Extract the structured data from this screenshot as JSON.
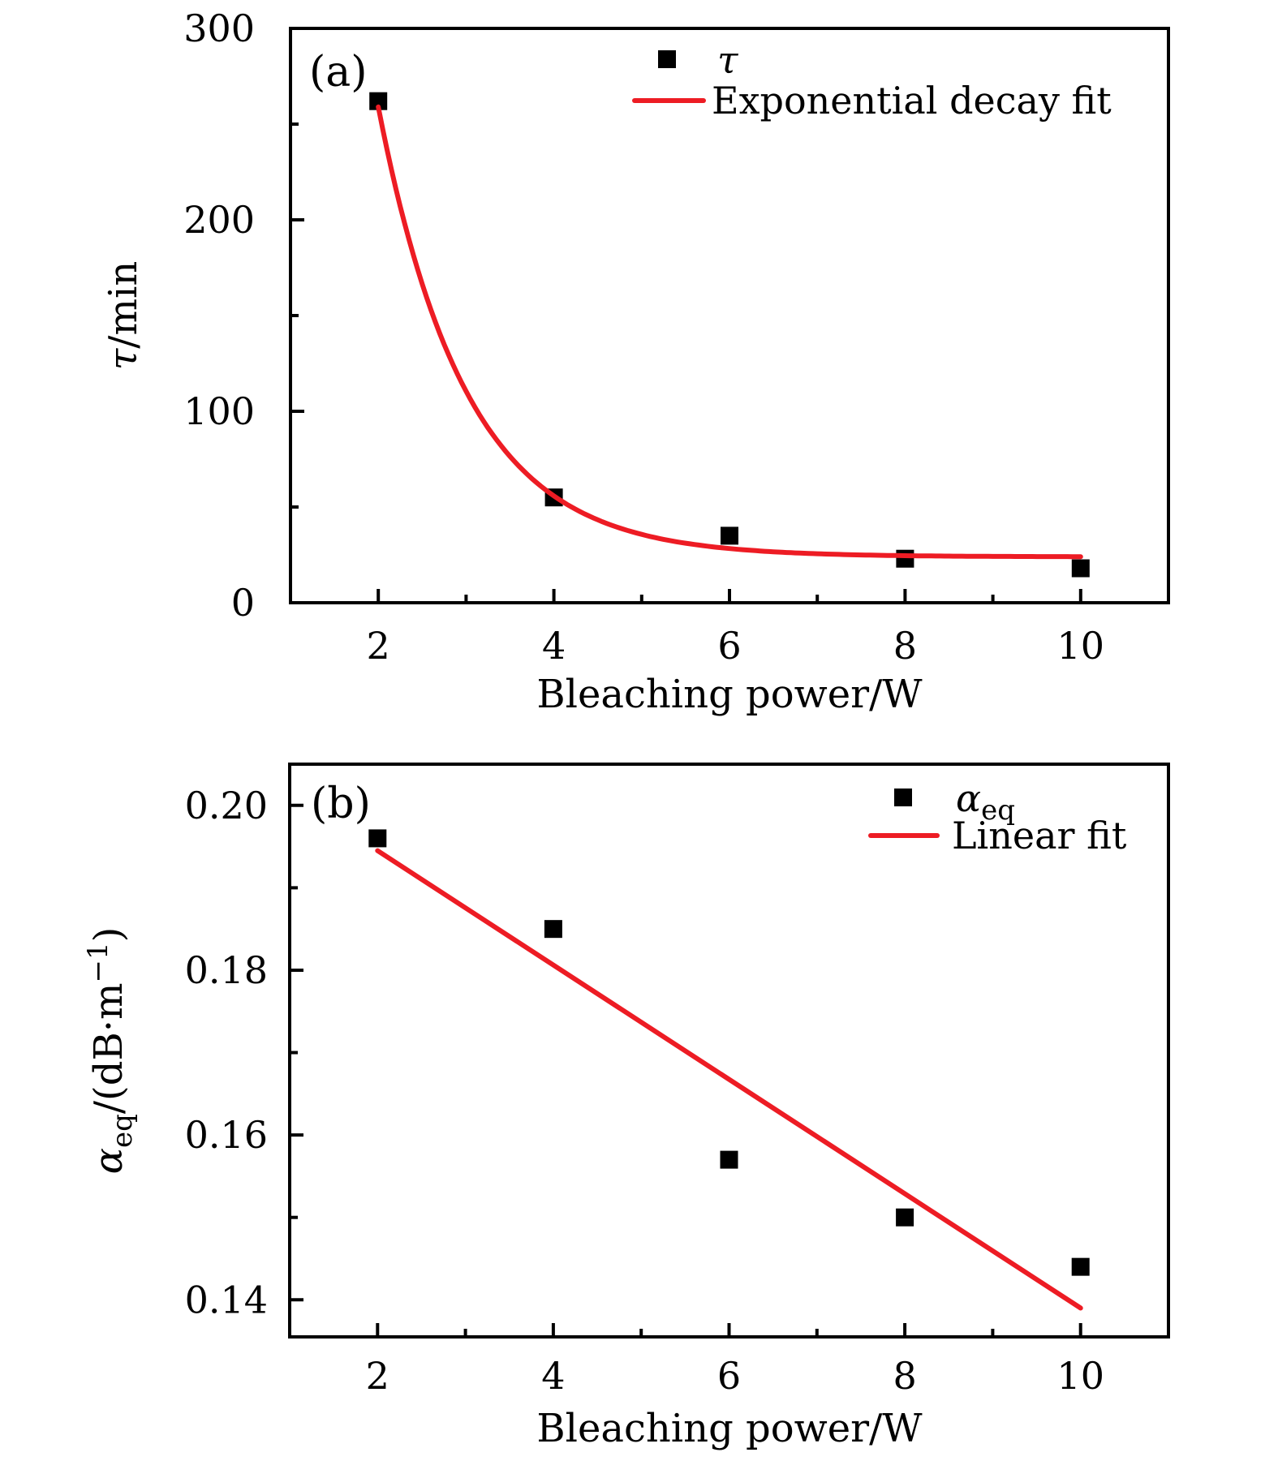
{
  "figure": {
    "accent_red": "#ed1c24",
    "marker_black": "#000000",
    "panels": [
      {
        "panel_label": "(a)",
        "xlabel": "Bleaching power/W",
        "ylabel": "τ/min",
        "ylabel_parts": {
          "symbol": "τ",
          "unit": "/min"
        },
        "legend": [
          {
            "marker": "black-square-icon",
            "label": "τ"
          },
          {
            "marker": "red-line-icon",
            "label": "Exponential decay fit"
          }
        ]
      },
      {
        "panel_label": "(b)",
        "xlabel": "Bleaching power/W",
        "ylabel": "α_eq/(dB·m⁻¹)",
        "ylabel_parts": {
          "symbol": "α",
          "sub": "eq",
          "mid": "/(dB·m",
          "sup": "−1",
          "end": ")"
        },
        "legend": [
          {
            "marker": "black-square-icon",
            "label": "α_eq",
            "label_parts": {
              "symbol": "α",
              "sub": "eq"
            }
          },
          {
            "marker": "red-line-icon",
            "label": "Linear fit"
          }
        ]
      }
    ]
  },
  "chart_data": [
    {
      "type": "scatter",
      "title": "(a)",
      "xlabel": "Bleaching power/W",
      "ylabel": "τ/min",
      "xlim": [
        1,
        11
      ],
      "ylim": [
        0,
        300
      ],
      "x_major_ticks": [
        2,
        4,
        6,
        8,
        10
      ],
      "x_minor_ticks": [
        3,
        5,
        7,
        9,
        11
      ],
      "y_major_ticks": [
        0,
        100,
        200,
        300
      ],
      "y_minor_ticks": [
        50,
        150,
        250
      ],
      "y_tick_decimals": 0,
      "grid": false,
      "legend_position": "top-center",
      "series": [
        {
          "name": "τ",
          "type": "scatter",
          "marker": "black-square",
          "x": [
            2,
            4,
            6,
            8,
            10
          ],
          "y": [
            262,
            55,
            35,
            23,
            18
          ]
        },
        {
          "name": "Exponential decay fit",
          "type": "curve",
          "color": "#ed1c24",
          "x_range": [
            2,
            10
          ],
          "fit": {
            "form": "y0 + A·exp(−(x−x1)/t)",
            "y0": 24,
            "A": 235,
            "t": 1.0,
            "x1": 2
          }
        }
      ]
    },
    {
      "type": "scatter",
      "title": "(b)",
      "xlabel": "Bleaching power/W",
      "ylabel": "α_eq/(dB·m⁻¹)",
      "xlim": [
        1,
        11
      ],
      "ylim": [
        0.1355,
        0.205
      ],
      "x_major_ticks": [
        2,
        4,
        6,
        8,
        10
      ],
      "x_minor_ticks": [
        3,
        5,
        7,
        9,
        11
      ],
      "y_major_ticks": [
        0.14,
        0.16,
        0.18,
        0.2
      ],
      "y_minor_ticks": [
        0.15,
        0.17,
        0.19
      ],
      "y_tick_decimals": 2,
      "grid": false,
      "legend_position": "top-right",
      "series": [
        {
          "name": "α_eq",
          "type": "scatter",
          "marker": "black-square",
          "x": [
            2,
            4,
            6,
            8,
            10
          ],
          "y": [
            0.196,
            0.185,
            0.157,
            0.15,
            0.144
          ]
        },
        {
          "name": "Linear fit",
          "type": "line",
          "color": "#ed1c24",
          "line": {
            "x": [
              2,
              10
            ],
            "y": [
              0.1945,
              0.139
            ]
          }
        }
      ]
    }
  ]
}
